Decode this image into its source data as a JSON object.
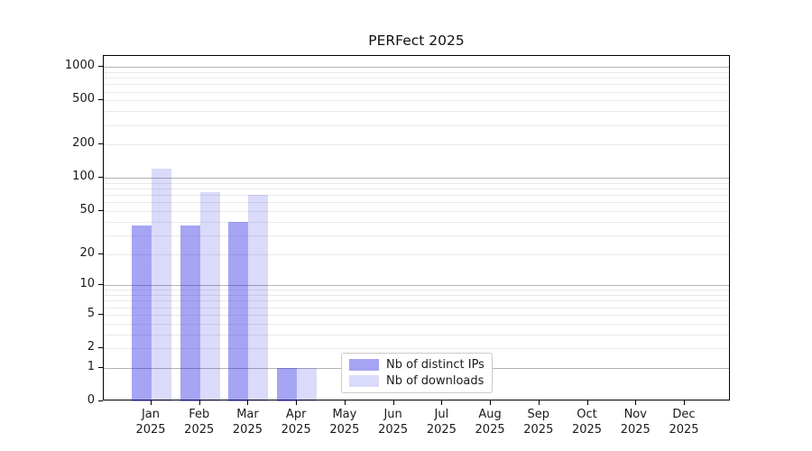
{
  "title": "PERFect 2025",
  "colors": {
    "ips_bar": "rgba(30,30,228,0.40)",
    "downloads_bar": "rgba(10,10,222,0.15)",
    "grid_major": "#b3b3b3",
    "grid_minor": "#e9e9e9",
    "axis": "#000000",
    "text": "#1a1a1a"
  },
  "legend": {
    "items": [
      {
        "label": "Nb of distinct IPs",
        "series": "ips"
      },
      {
        "label": "Nb of downloads",
        "series": "downloads"
      }
    ]
  },
  "chart_data": {
    "type": "bar",
    "title": "PERFect 2025",
    "categories": [
      "Jan 2025",
      "Feb 2025",
      "Mar 2025",
      "Apr 2025",
      "May 2025",
      "Jun 2025",
      "Jul 2025",
      "Aug 2025",
      "Sep 2025",
      "Oct 2025",
      "Nov 2025",
      "Dec 2025"
    ],
    "series": [
      {
        "name": "Nb of distinct IPs",
        "key": "ips",
        "values": [
          37,
          37,
          40,
          1,
          0,
          0,
          0,
          0,
          0,
          0,
          0,
          0
        ]
      },
      {
        "name": "Nb of downloads",
        "key": "downloads",
        "values": [
          122,
          74,
          70,
          1,
          0,
          0,
          0,
          0,
          0,
          0,
          0,
          0
        ]
      }
    ],
    "y_ticks": [
      0,
      1,
      2,
      5,
      10,
      20,
      50,
      100,
      200,
      500,
      1000
    ],
    "y_scale": "log10(value+1)",
    "ylim": [
      0,
      1260
    ],
    "xlabel": "",
    "ylabel": "",
    "grid": "on",
    "legend_position": "lower center"
  }
}
